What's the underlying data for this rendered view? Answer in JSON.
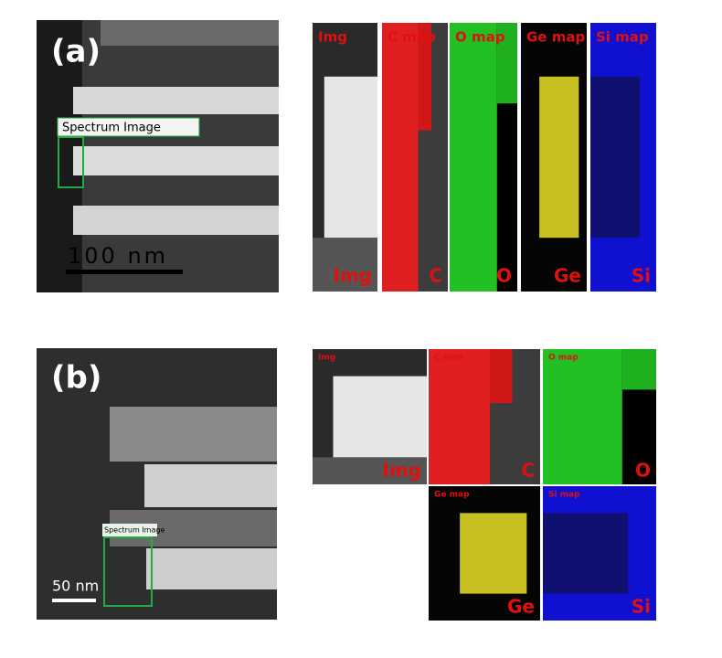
{
  "panels": [
    {
      "label": "(a)",
      "box_label": "Spectrum Image",
      "scale_bar": "100 nm",
      "maps": [
        {
          "title": "Img",
          "element": "Img"
        },
        {
          "title": "C map",
          "element": "C"
        },
        {
          "title": "O map",
          "element": "O"
        },
        {
          "title": "Ge map",
          "element": "Ge"
        },
        {
          "title": "Si map",
          "element": "Si"
        }
      ]
    },
    {
      "label": "(b)",
      "box_label": "Spectrum Image",
      "scale_bar": "50 nm",
      "maps": [
        {
          "title": "Img",
          "element": "Img"
        },
        {
          "title": "C map",
          "element": "C"
        },
        {
          "title": "O map",
          "element": "O"
        },
        {
          "title": "Ge map",
          "element": "Ge"
        },
        {
          "title": "Si map",
          "element": "Si"
        }
      ]
    }
  ]
}
